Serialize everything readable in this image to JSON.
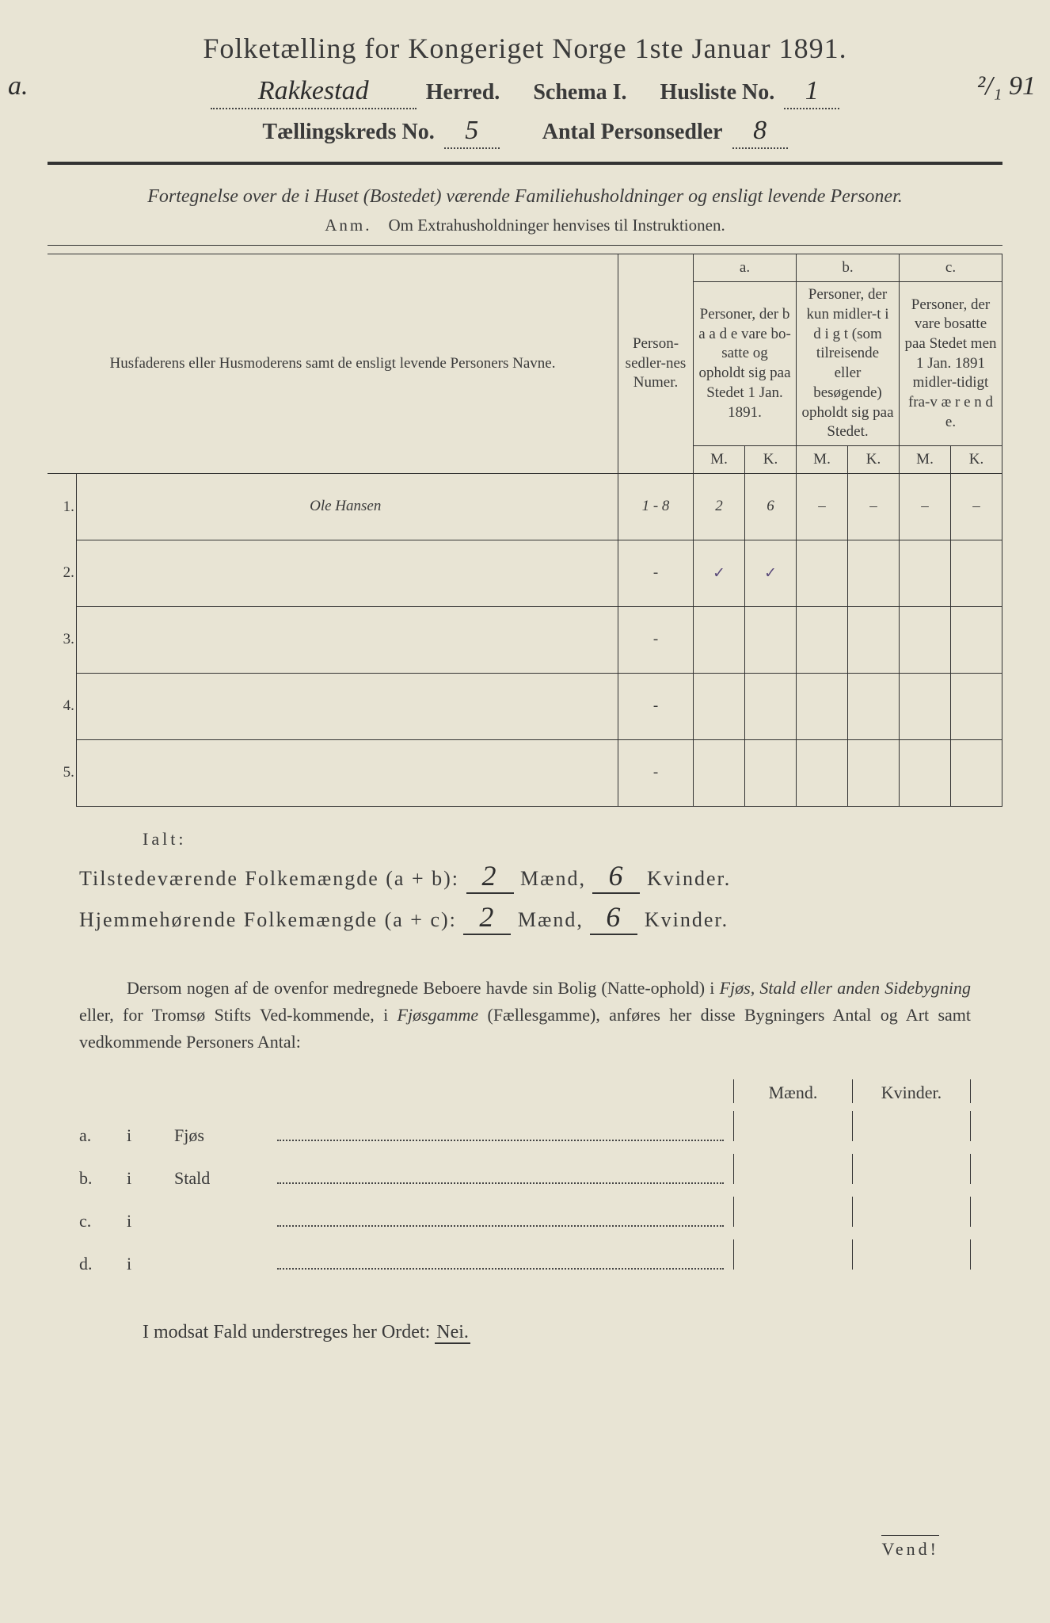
{
  "title": "Folketælling for Kongeriget Norge 1ste Januar 1891.",
  "margin_a": "a.",
  "margin_date": "²/₁ 91",
  "header": {
    "herred_value": "Rakkestad",
    "herred_label": "Herred.",
    "schema_label": "Schema I.",
    "husliste_label": "Husliste No.",
    "husliste_value": "1",
    "kreds_label": "Tællingskreds No.",
    "kreds_value": "5",
    "antal_label": "Antal Personsedler",
    "antal_value": "8"
  },
  "intro": "Fortegnelse over de i Huset (Bostedet) værende Familiehusholdninger og ensligt levende Personer.",
  "anm_label": "Anm.",
  "anm_text": "Om Extrahusholdninger henvises til Instruktionen.",
  "table": {
    "col_name": "Husfaderens eller Husmoderens samt de ensligt levende Personers Navne.",
    "samt_word": "samt",
    "col_numer": "Person-sedler-nes Numer.",
    "a_label": "a.",
    "a_desc": "Personer, der b a a d e vare bo-satte og opholdt sig paa Stedet 1 Jan. 1891.",
    "b_label": "b.",
    "b_desc": "Personer, der kun midler-t i d i g t (som tilreisende eller besøgende) opholdt sig paa Stedet.",
    "c_label": "c.",
    "c_desc": "Personer, der vare bosatte paa Stedet men 1 Jan. 1891 midler-tidigt fra-v æ r e n d e.",
    "M": "M.",
    "K": "K.",
    "rows": [
      {
        "n": "1.",
        "name": "Ole Hansen",
        "numer": "1 - 8",
        "aM": "2",
        "aK": "6",
        "bM": "–",
        "bK": "–",
        "cM": "–",
        "cK": "–"
      },
      {
        "n": "2.",
        "name": "",
        "numer": "-",
        "aM": "✓",
        "aK": "✓",
        "bM": "",
        "bK": "",
        "cM": "",
        "cK": ""
      },
      {
        "n": "3.",
        "name": "",
        "numer": "-",
        "aM": "",
        "aK": "",
        "bM": "",
        "bK": "",
        "cM": "",
        "cK": ""
      },
      {
        "n": "4.",
        "name": "",
        "numer": "-",
        "aM": "",
        "aK": "",
        "bM": "",
        "bK": "",
        "cM": "",
        "cK": ""
      },
      {
        "n": "5.",
        "name": "",
        "numer": "-",
        "aM": "",
        "aK": "",
        "bM": "",
        "bK": "",
        "cM": "",
        "cK": ""
      }
    ]
  },
  "ialt": "Ialt:",
  "totals": {
    "line1_label": "Tilstedeværende Folkemængde (a + b):",
    "line2_label": "Hjemmehørende Folkemængde (a + c):",
    "maend": "Mænd,",
    "kvinder": "Kvinder.",
    "t_m": "2",
    "t_k": "6",
    "h_m": "2",
    "h_k": "6"
  },
  "para": {
    "text1": "Dersom nogen af de ovenfor medregnede Beboere havde sin Bolig (Natte-ophold) i ",
    "ital1": "Fjøs, Stald eller anden Sidebygning",
    "text2": " eller, for Tromsø Stifts Ved-kommende, i ",
    "ital2": "Fjøsgamme",
    "text3": " (Fællesgamme), anføres her disse Bygningers Antal og Art samt vedkommende Personers Antal:"
  },
  "mk_header": {
    "m": "Mænd.",
    "k": "Kvinder."
  },
  "sub": [
    {
      "l": "a.",
      "i": "i",
      "t": "Fjøs"
    },
    {
      "l": "b.",
      "i": "i",
      "t": "Stald"
    },
    {
      "l": "c.",
      "i": "i",
      "t": ""
    },
    {
      "l": "d.",
      "i": "i",
      "t": ""
    }
  ],
  "nei": {
    "text": "I modsat Fald understreges her Ordet: ",
    "word": "Nei."
  },
  "vend": "Vend!"
}
